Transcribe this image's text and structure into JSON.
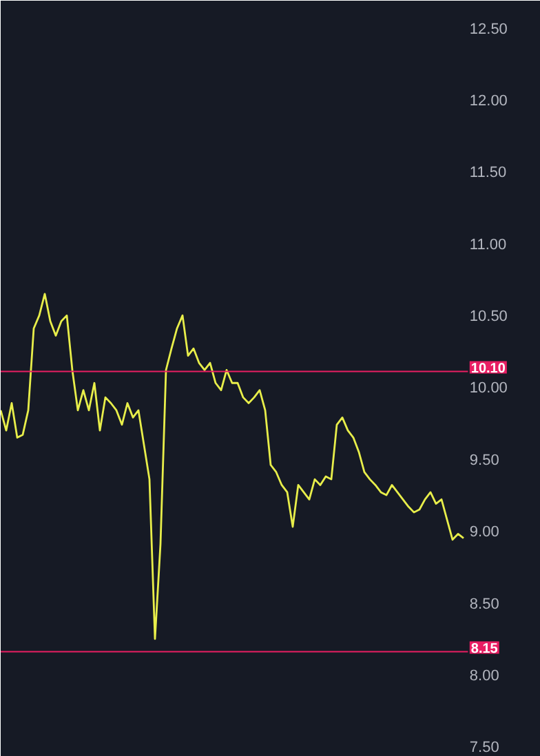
{
  "chart_data": {
    "type": "line",
    "categories": [
      null,
      null,
      null,
      null,
      null,
      null,
      null,
      null,
      null,
      null,
      null,
      null,
      null,
      null,
      null,
      null,
      null,
      null,
      null,
      null,
      null,
      null,
      null,
      null,
      null,
      null,
      null,
      null,
      null,
      null,
      null,
      null,
      null,
      null,
      null,
      null,
      null,
      null,
      null,
      null,
      null,
      null,
      null,
      null,
      null,
      null,
      null,
      null,
      null,
      null,
      null,
      null,
      null,
      null,
      null,
      null,
      null,
      null,
      null,
      null,
      null,
      null,
      null,
      null,
      null,
      null,
      null,
      null,
      null,
      null,
      null,
      null,
      null,
      null,
      null,
      null,
      null,
      null,
      null,
      null,
      null,
      null,
      null,
      null,
      null
    ],
    "series": [
      {
        "color": "#e8ee4a",
        "values": [
          9.83,
          9.69,
          9.88,
          9.64,
          9.66,
          9.83,
          10.4,
          10.49,
          10.64,
          10.45,
          10.35,
          10.45,
          10.49,
          10.11,
          9.83,
          9.97,
          9.83,
          10.02,
          9.69,
          9.92,
          9.88,
          9.83,
          9.73,
          9.88,
          9.78,
          9.83,
          9.59,
          9.35,
          8.24,
          8.9,
          10.11,
          10.26,
          10.4,
          10.49,
          10.21,
          10.26,
          10.16,
          10.11,
          10.16,
          10.02,
          9.97,
          10.11,
          10.02,
          10.02,
          9.92,
          9.88,
          9.92,
          9.97,
          9.83,
          9.45,
          9.4,
          9.31,
          9.26,
          9.02,
          9.31,
          9.26,
          9.21,
          9.35,
          9.31,
          9.37,
          9.35,
          9.73,
          9.78,
          9.69,
          9.64,
          9.54,
          9.4,
          9.35,
          9.31,
          9.26,
          9.24,
          9.31,
          9.26,
          9.21,
          9.16,
          9.12,
          9.14,
          9.21,
          9.26,
          9.18,
          9.21,
          9.07,
          8.93,
          8.97,
          8.94
        ]
      }
    ],
    "ylim": [
      7.42,
      12.68
    ],
    "yticks": [
      {
        "value": 7.5,
        "label": "7.50"
      },
      {
        "value": 8.0,
        "label": "8.00"
      },
      {
        "value": 8.5,
        "label": "8.50"
      },
      {
        "value": 9.0,
        "label": "9.00"
      },
      {
        "value": 9.5,
        "label": "9.50"
      },
      {
        "value": 10.0,
        "label": "10.00"
      },
      {
        "value": 10.5,
        "label": "10.50"
      },
      {
        "value": 11.0,
        "label": "11.00"
      },
      {
        "value": 11.5,
        "label": "11.50"
      },
      {
        "value": 12.0,
        "label": "12.00"
      },
      {
        "value": 12.5,
        "label": "12.50"
      }
    ],
    "ref_lines": [
      {
        "axis": "y",
        "value": 10.1,
        "label": "10.10",
        "color": "#e91e63"
      },
      {
        "axis": "y",
        "value": 8.15,
        "label": "8.15",
        "color": "#e91e63"
      }
    ],
    "grid": false,
    "tick_labels": "y",
    "marker": "none",
    "line_style": "solid"
  }
}
